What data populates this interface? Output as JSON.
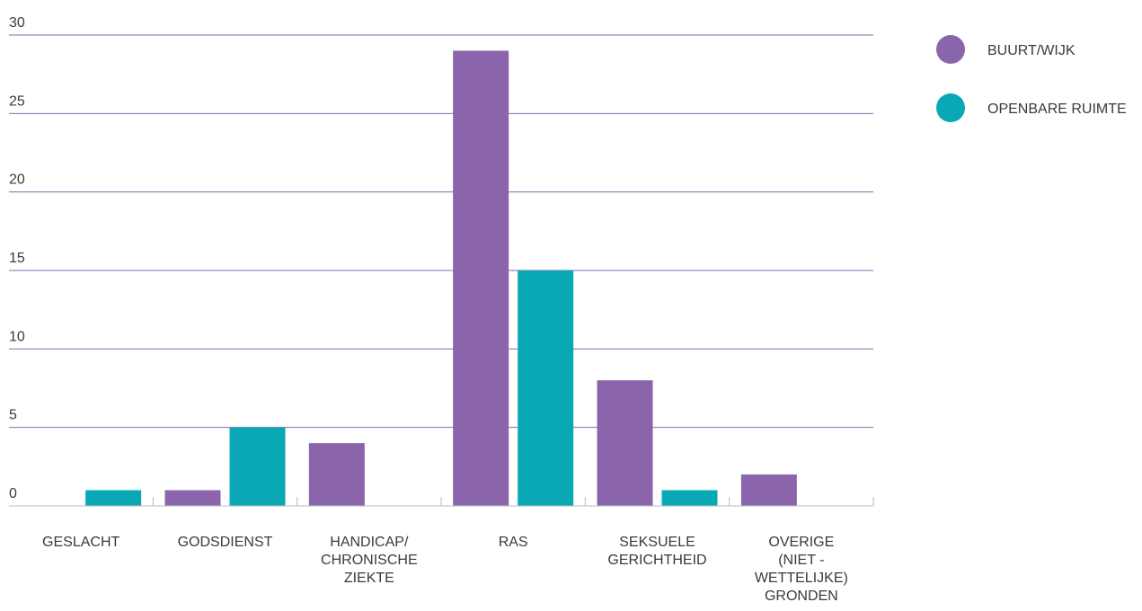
{
  "chart_data": {
    "type": "bar",
    "categories": [
      [
        "GESLACHT"
      ],
      [
        "GODSDIENST"
      ],
      [
        "HANDICAP/",
        "CHRONISCHE",
        "ZIEKTE"
      ],
      [
        "RAS"
      ],
      [
        "SEKSUELE",
        "GERICHTHEID"
      ],
      [
        "OVERIGE",
        "(NIET -",
        "WETTELIJKE)",
        "GRONDEN"
      ]
    ],
    "series": [
      {
        "name": "BUURT/WIJK",
        "color": "#8b65ab",
        "values": [
          0,
          1,
          4,
          29,
          8,
          2
        ]
      },
      {
        "name": "OPENBARE RUIMTE",
        "color": "#0aa8b5",
        "values": [
          1,
          5,
          0,
          15,
          1,
          0
        ]
      }
    ],
    "ylim": [
      0,
      30
    ],
    "yticks": [
      0,
      5,
      10,
      15,
      20,
      25,
      30
    ],
    "grid": true,
    "grid_color": "#8b65ab",
    "legend": "top-right"
  }
}
